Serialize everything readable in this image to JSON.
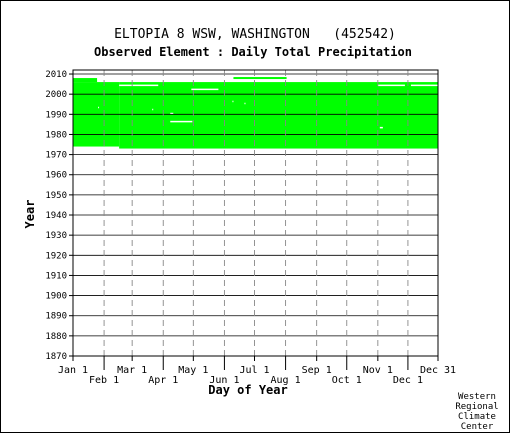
{
  "chart_data": {
    "type": "heatmap",
    "title": "ELTOPIA 8 WSW, WASHINGTON   (452542)",
    "subtitle": "Observed Element : Daily Total Precipitation",
    "xlabel": "Day of Year",
    "ylabel": "Year",
    "ylim": [
      1870,
      2012
    ],
    "yticks": [
      1870,
      1880,
      1890,
      1900,
      1910,
      1920,
      1930,
      1940,
      1950,
      1960,
      1970,
      1980,
      1990,
      2000,
      2010
    ],
    "xlim": [
      1,
      365
    ],
    "xticks": [
      {
        "label": "Jan 1",
        "day": 1,
        "row": 1
      },
      {
        "label": "Feb 1",
        "day": 32,
        "row": 2
      },
      {
        "label": "Mar 1",
        "day": 60,
        "row": 1
      },
      {
        "label": "Apr 1",
        "day": 91,
        "row": 2
      },
      {
        "label": "May 1",
        "day": 121,
        "row": 1
      },
      {
        "label": "Jun 1",
        "day": 152,
        "row": 2
      },
      {
        "label": "Jul 1",
        "day": 182,
        "row": 1
      },
      {
        "label": "Aug 1",
        "day": 213,
        "row": 2
      },
      {
        "label": "Sep 1",
        "day": 244,
        "row": 1
      },
      {
        "label": "Oct 1",
        "day": 274,
        "row": 2
      },
      {
        "label": "Nov 1",
        "day": 305,
        "row": 1
      },
      {
        "label": "Dec 1",
        "day": 335,
        "row": 2
      },
      {
        "label": "Dec 31",
        "day": 365,
        "row": 1
      }
    ],
    "data_color": "#00ff00",
    "missing_color": "#ffffff",
    "grid": true,
    "coverage": [
      {
        "year_from": 1974,
        "year_to": 2005,
        "day_from": 1,
        "day_to": 47
      },
      {
        "year_from": 1973,
        "year_to": 2005,
        "day_from": 47,
        "day_to": 365
      },
      {
        "year_from": 2006,
        "year_to": 2007,
        "day_from": 1,
        "day_to": 25
      },
      {
        "year_from": 2003,
        "year_to": 2004,
        "day_from": 1,
        "day_to": 4
      },
      {
        "year_from": 2001,
        "year_to": 2002,
        "day_from": 1,
        "day_to": 4
      }
    ],
    "gaps": [
      {
        "year": 2004,
        "day_from": 47,
        "day_to": 60
      },
      {
        "year": 2004,
        "day_from": 60,
        "day_to": 86
      },
      {
        "year": 2002,
        "day_from": 119,
        "day_to": 146
      },
      {
        "year": 2004,
        "day_from": 305,
        "day_to": 332
      },
      {
        "year": 2004,
        "day_from": 338,
        "day_to": 365
      },
      {
        "year": 1986,
        "day_from": 98,
        "day_to": 120
      },
      {
        "year": 1990,
        "day_from": 98,
        "day_to": 101
      },
      {
        "year": 1983,
        "day_from": 307,
        "day_to": 310
      },
      {
        "year": 1993,
        "day_from": 26,
        "day_to": 27
      },
      {
        "year": 1992,
        "day_from": 80,
        "day_to": 81
      },
      {
        "year": 1996,
        "day_from": 160,
        "day_to": 161
      },
      {
        "year": 1995,
        "day_from": 172,
        "day_to": 173
      }
    ],
    "extra_rows": [
      {
        "year": 2008,
        "day_from": 161,
        "day_to": 214
      },
      {
        "year": 2005,
        "day_from": 300,
        "day_to": 365
      }
    ]
  },
  "footer": {
    "credit_lines": [
      "Western",
      "Regional",
      "Climate",
      "Center"
    ]
  }
}
